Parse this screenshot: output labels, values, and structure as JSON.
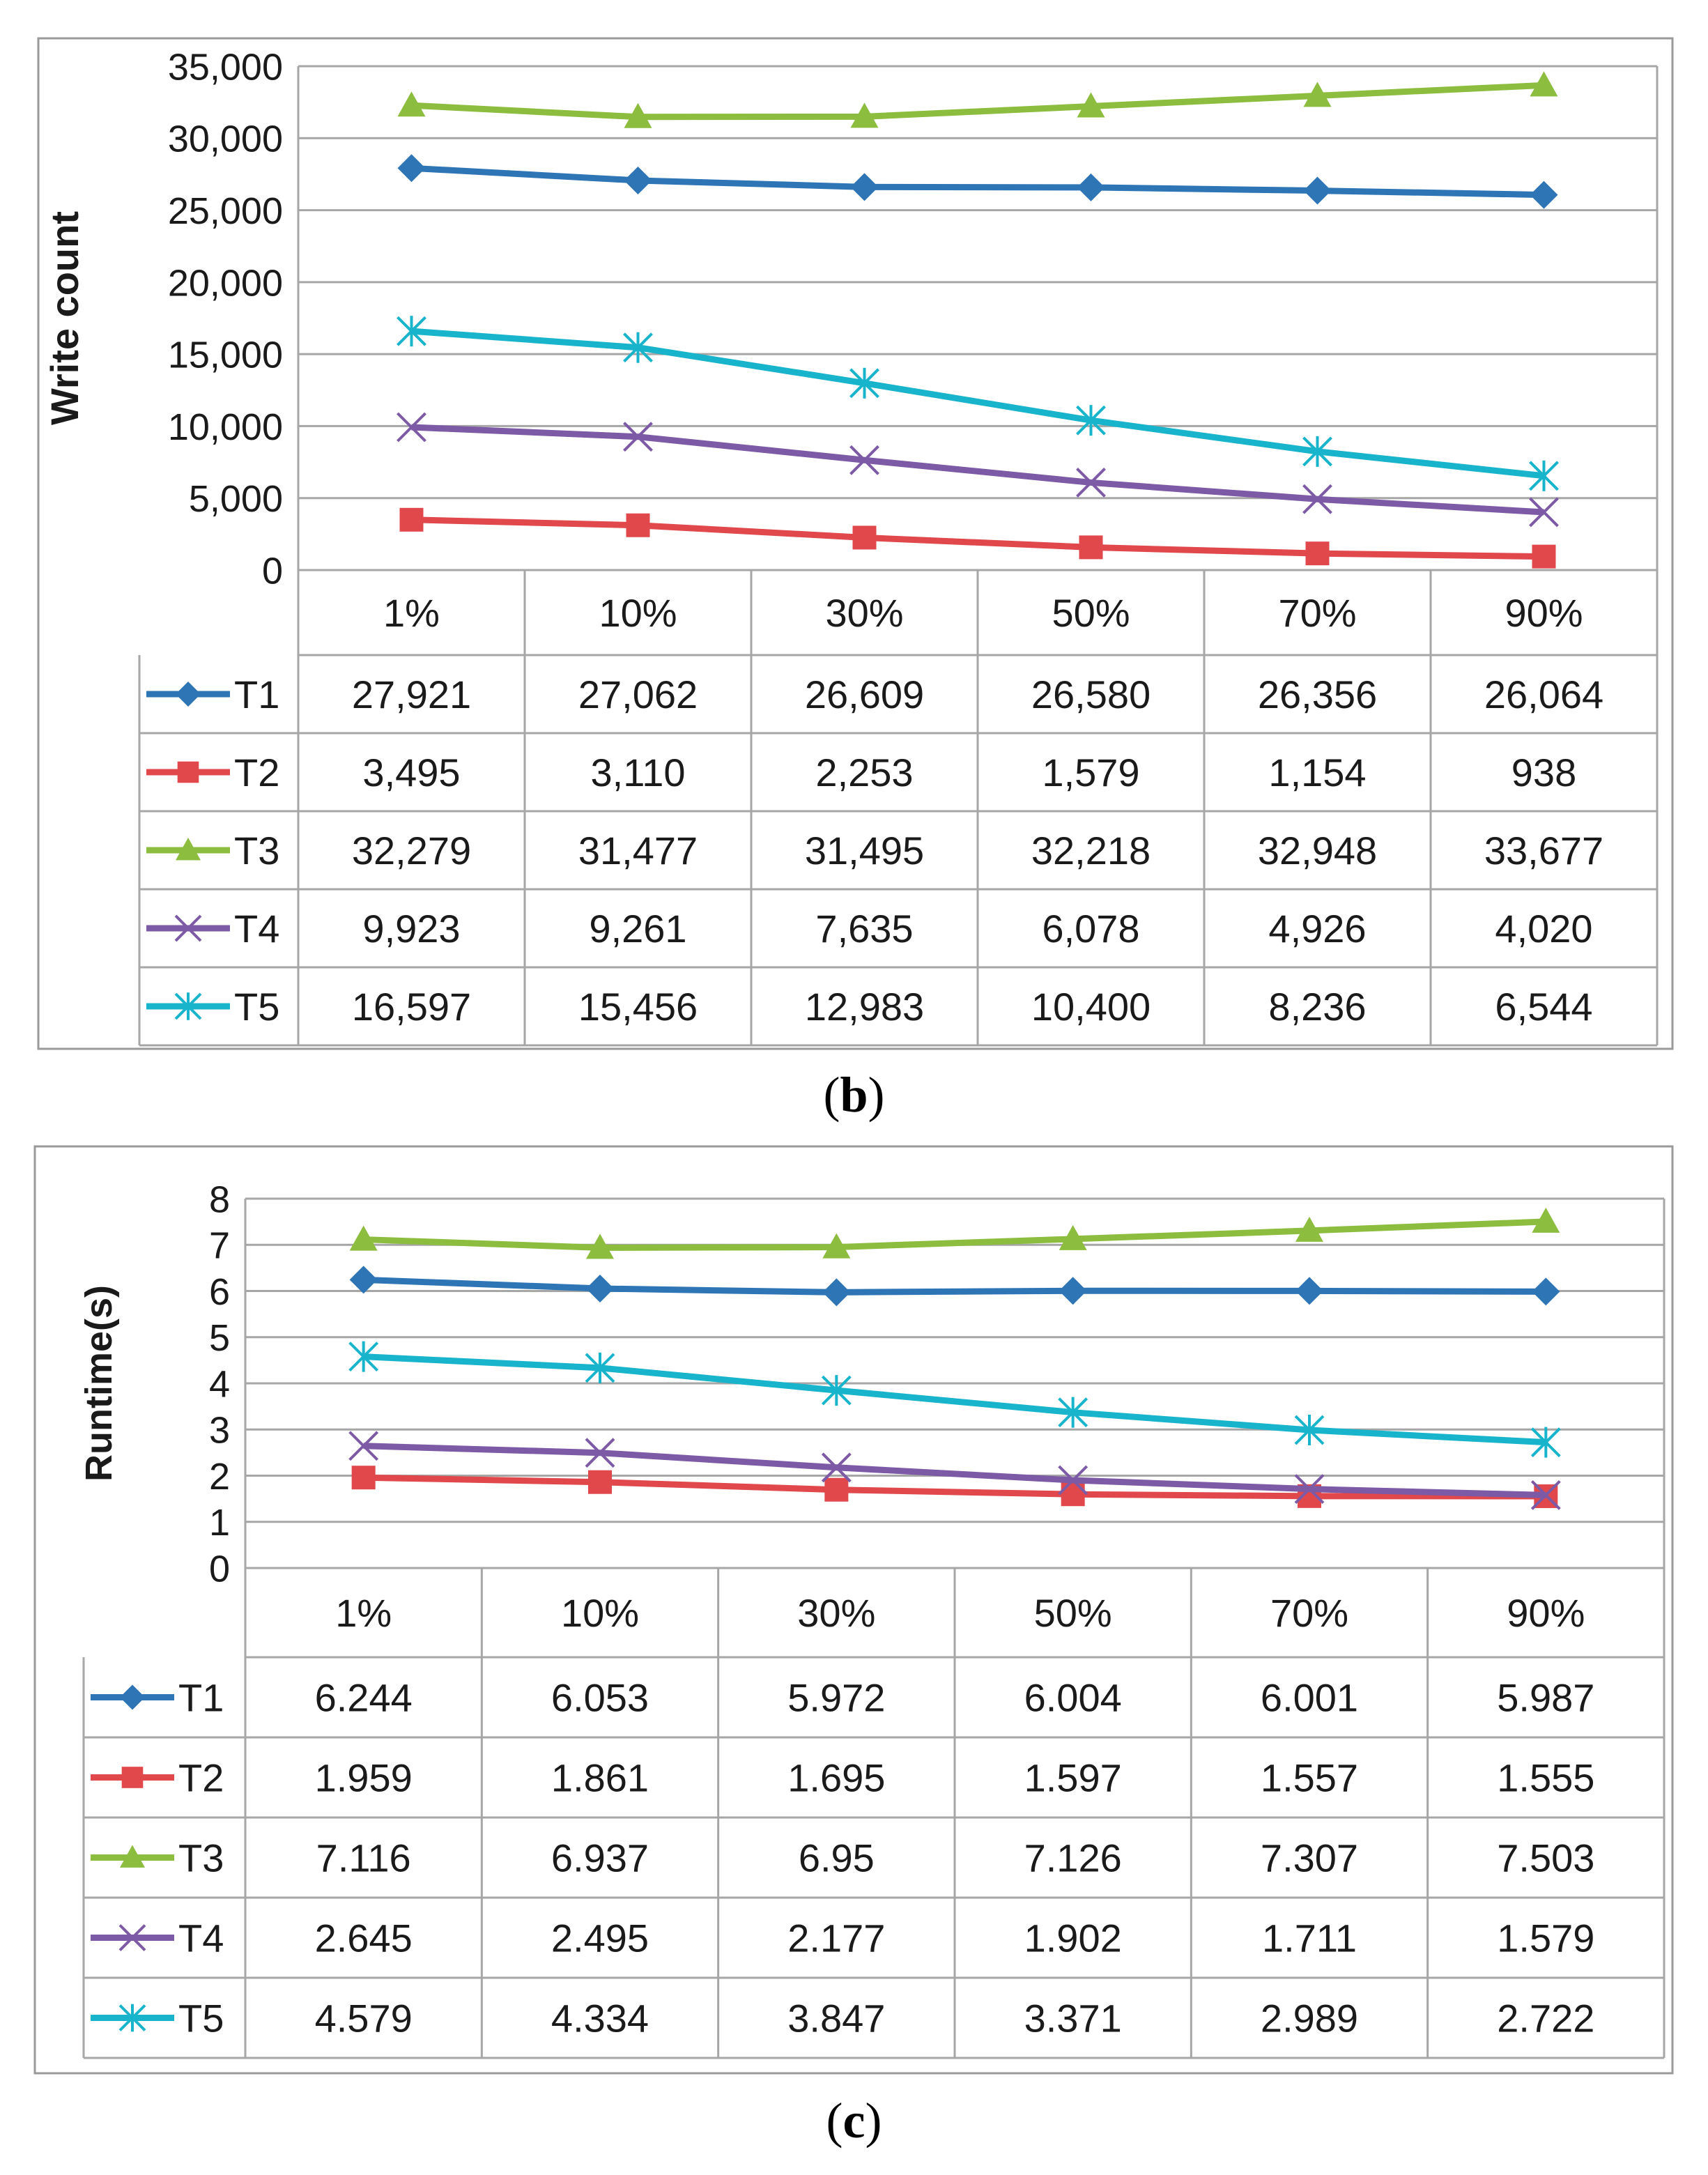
{
  "chart_data": [
    {
      "type": "line",
      "panel_label": "b",
      "ylabel": "Write count",
      "ylim": [
        0,
        35000
      ],
      "yticks": [
        "0",
        "5,000",
        "10,000",
        "15,000",
        "20,000",
        "25,000",
        "30,000",
        "35,000"
      ],
      "categories": [
        "1%",
        "10%",
        "30%",
        "50%",
        "70%",
        "90%"
      ],
      "grid": true,
      "series": [
        {
          "name": "T1",
          "color": "#2E75B6",
          "marker": "diamond",
          "values": [
            27921,
            27062,
            26609,
            26580,
            26356,
            26064
          ],
          "labels": [
            "27,921",
            "27,062",
            "26,609",
            "26,580",
            "26,356",
            "26,064"
          ]
        },
        {
          "name": "T2",
          "color": "#E0484B",
          "marker": "square",
          "values": [
            3495,
            3110,
            2253,
            1579,
            1154,
            938
          ],
          "labels": [
            "3,495",
            "3,110",
            "2,253",
            "1,579",
            "1,154",
            "938"
          ]
        },
        {
          "name": "T3",
          "color": "#8CBD3F",
          "marker": "triangle",
          "values": [
            32279,
            31477,
            31495,
            32218,
            32948,
            33677
          ],
          "labels": [
            "32,279",
            "31,477",
            "31,495",
            "32,218",
            "32,948",
            "33,677"
          ]
        },
        {
          "name": "T4",
          "color": "#7D5AA6",
          "marker": "x",
          "values": [
            9923,
            9261,
            7635,
            6078,
            4926,
            4020
          ],
          "labels": [
            "9,923",
            "9,261",
            "7,635",
            "6,078",
            "4,926",
            "4,020"
          ]
        },
        {
          "name": "T5",
          "color": "#18B4CC",
          "marker": "asterisk",
          "values": [
            16597,
            15456,
            12983,
            10400,
            8236,
            6544
          ],
          "labels": [
            "16,597",
            "15,456",
            "12,983",
            "10,400",
            "8,236",
            "6,544"
          ]
        }
      ]
    },
    {
      "type": "line",
      "panel_label": "c",
      "ylabel": "Runtime(s)",
      "ylim": [
        0,
        8
      ],
      "yticks": [
        "0",
        "1",
        "2",
        "3",
        "4",
        "5",
        "6",
        "7",
        "8"
      ],
      "categories": [
        "1%",
        "10%",
        "30%",
        "50%",
        "70%",
        "90%"
      ],
      "grid": true,
      "series": [
        {
          "name": "T1",
          "color": "#2E75B6",
          "marker": "diamond",
          "values": [
            6.244,
            6.053,
            5.972,
            6.004,
            6.001,
            5.987
          ],
          "labels": [
            "6.244",
            "6.053",
            "5.972",
            "6.004",
            "6.001",
            "5.987"
          ]
        },
        {
          "name": "T2",
          "color": "#E0484B",
          "marker": "square",
          "values": [
            1.959,
            1.861,
            1.695,
            1.597,
            1.557,
            1.555
          ],
          "labels": [
            "1.959",
            "1.861",
            "1.695",
            "1.597",
            "1.557",
            "1.555"
          ]
        },
        {
          "name": "T3",
          "color": "#8CBD3F",
          "marker": "triangle",
          "values": [
            7.116,
            6.937,
            6.95,
            7.126,
            7.307,
            7.503
          ],
          "labels": [
            "7.116",
            "6.937",
            "6.95",
            "7.126",
            "7.307",
            "7.503"
          ]
        },
        {
          "name": "T4",
          "color": "#7D5AA6",
          "marker": "x",
          "values": [
            2.645,
            2.495,
            2.177,
            1.902,
            1.711,
            1.579
          ],
          "labels": [
            "2.645",
            "2.495",
            "2.177",
            "1.902",
            "1.711",
            "1.579"
          ]
        },
        {
          "name": "T5",
          "color": "#18B4CC",
          "marker": "asterisk",
          "values": [
            4.579,
            4.334,
            3.847,
            3.371,
            2.989,
            2.722
          ],
          "labels": [
            "4.579",
            "4.334",
            "3.847",
            "3.371",
            "2.989",
            "2.722"
          ]
        }
      ]
    }
  ]
}
